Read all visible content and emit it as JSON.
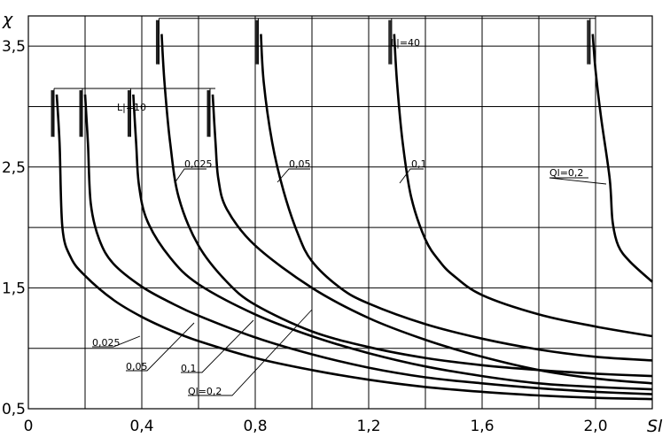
{
  "chart_data": {
    "type": "line",
    "xlabel": "Sl",
    "ylabel": "χ",
    "xlim": [
      0,
      2.2
    ],
    "ylim": [
      0.5,
      3.75
    ],
    "grid": true,
    "x_ticks": [
      0,
      0.2,
      0.4,
      0.6,
      0.8,
      1.0,
      1.2,
      1.4,
      1.6,
      1.8,
      2.0,
      2.2
    ],
    "y_ticks": [
      0.5,
      1.0,
      1.5,
      2.0,
      2.5,
      3.0,
      3.5
    ],
    "x_tick_labels": [
      {
        "x": 0,
        "label": "0"
      },
      {
        "x": 0.4,
        "label": "0,4"
      },
      {
        "x": 0.8,
        "label": "0,8"
      },
      {
        "x": 1.2,
        "label": "1,2"
      },
      {
        "x": 1.6,
        "label": "1,6"
      },
      {
        "x": 2.0,
        "label": "2,0"
      }
    ],
    "y_tick_labels": [
      {
        "y": 0.5,
        "label": "0,5"
      },
      {
        "y": 1.5,
        "label": "1,5"
      },
      {
        "y": 2.5,
        "label": "2,5"
      },
      {
        "y": 3.5,
        "label": "3,5"
      }
    ],
    "groups": [
      {
        "bracket_label": "L|=10",
        "series": [
          {
            "name": "0,025",
            "points": [
              [
                0.1,
                3.1
              ],
              [
                0.11,
                2.7
              ],
              [
                0.12,
                2.0
              ],
              [
                0.15,
                1.75
              ],
              [
                0.2,
                1.6
              ],
              [
                0.3,
                1.4
              ],
              [
                0.4,
                1.26
              ],
              [
                0.5,
                1.15
              ],
              [
                0.6,
                1.06
              ],
              [
                0.8,
                0.92
              ],
              [
                1.0,
                0.82
              ],
              [
                1.2,
                0.74
              ],
              [
                1.4,
                0.68
              ],
              [
                1.6,
                0.64
              ],
              [
                1.8,
                0.61
              ],
              [
                2.0,
                0.59
              ],
              [
                2.2,
                0.58
              ]
            ]
          },
          {
            "name": "0,05",
            "points": [
              [
                0.2,
                3.1
              ],
              [
                0.21,
                2.7
              ],
              [
                0.22,
                2.2
              ],
              [
                0.25,
                1.9
              ],
              [
                0.3,
                1.7
              ],
              [
                0.4,
                1.51
              ],
              [
                0.5,
                1.38
              ],
              [
                0.6,
                1.27
              ],
              [
                0.8,
                1.09
              ],
              [
                1.0,
                0.95
              ],
              [
                1.2,
                0.84
              ],
              [
                1.4,
                0.76
              ],
              [
                1.6,
                0.71
              ],
              [
                1.8,
                0.67
              ],
              [
                2.0,
                0.64
              ],
              [
                2.2,
                0.62
              ]
            ]
          },
          {
            "name": "0,1",
            "points": [
              [
                0.37,
                3.1
              ],
              [
                0.38,
                2.7
              ],
              [
                0.39,
                2.35
              ],
              [
                0.42,
                2.05
              ],
              [
                0.5,
                1.75
              ],
              [
                0.6,
                1.53
              ],
              [
                0.8,
                1.28
              ],
              [
                1.0,
                1.1
              ],
              [
                1.2,
                0.96
              ],
              [
                1.4,
                0.85
              ],
              [
                1.6,
                0.77
              ],
              [
                1.8,
                0.71
              ],
              [
                2.0,
                0.68
              ],
              [
                2.2,
                0.66
              ]
            ]
          },
          {
            "name": "Ql=0,2",
            "points": [
              [
                0.65,
                3.1
              ],
              [
                0.66,
                2.7
              ],
              [
                0.67,
                2.4
              ],
              [
                0.7,
                2.15
              ],
              [
                0.8,
                1.85
              ],
              [
                1.0,
                1.5
              ],
              [
                1.2,
                1.25
              ],
              [
                1.4,
                1.07
              ],
              [
                1.6,
                0.93
              ],
              [
                1.8,
                0.82
              ],
              [
                2.0,
                0.75
              ],
              [
                2.2,
                0.71
              ]
            ]
          }
        ]
      },
      {
        "bracket_label": "L|=40",
        "series": [
          {
            "name": "0,025",
            "points": [
              [
                0.47,
                3.6
              ],
              [
                0.48,
                3.2
              ],
              [
                0.5,
                2.7
              ],
              [
                0.53,
                2.25
              ],
              [
                0.6,
                1.85
              ],
              [
                0.7,
                1.55
              ],
              [
                0.8,
                1.36
              ],
              [
                1.0,
                1.14
              ],
              [
                1.2,
                1.01
              ],
              [
                1.4,
                0.92
              ],
              [
                1.6,
                0.86
              ],
              [
                1.8,
                0.82
              ],
              [
                2.0,
                0.79
              ],
              [
                2.2,
                0.77
              ]
            ]
          },
          {
            "name": "0,05",
            "points": [
              [
                0.82,
                3.6
              ],
              [
                0.83,
                3.2
              ],
              [
                0.86,
                2.7
              ],
              [
                0.9,
                2.3
              ],
              [
                0.95,
                1.95
              ],
              [
                1.0,
                1.72
              ],
              [
                1.1,
                1.5
              ],
              [
                1.2,
                1.37
              ],
              [
                1.4,
                1.2
              ],
              [
                1.6,
                1.08
              ],
              [
                1.8,
                0.99
              ],
              [
                2.0,
                0.93
              ],
              [
                2.2,
                0.9
              ]
            ]
          },
          {
            "name": "0,1",
            "points": [
              [
                1.29,
                3.6
              ],
              [
                1.3,
                3.2
              ],
              [
                1.32,
                2.7
              ],
              [
                1.35,
                2.25
              ],
              [
                1.4,
                1.9
              ],
              [
                1.45,
                1.72
              ],
              [
                1.5,
                1.6
              ],
              [
                1.6,
                1.44
              ],
              [
                1.8,
                1.28
              ],
              [
                2.0,
                1.18
              ],
              [
                2.2,
                1.1
              ]
            ]
          },
          {
            "name": "Ql=0,2",
            "points": [
              [
                1.99,
                3.6
              ],
              [
                2.0,
                3.3
              ],
              [
                2.02,
                2.9
              ],
              [
                2.05,
                2.4
              ],
              [
                2.06,
                2.05
              ],
              [
                2.08,
                1.85
              ],
              [
                2.12,
                1.72
              ],
              [
                2.2,
                1.55
              ]
            ]
          }
        ]
      }
    ]
  },
  "labels": {
    "bracket_10": "L|=10",
    "bracket_40": "L|=40",
    "upper": {
      "s025": "0,025",
      "s05": "0,05",
      "s1": "0,1",
      "s2": "Ql=0,2"
    },
    "lower": {
      "s025": "0,025",
      "s05": "0,05",
      "s1": "0,1",
      "s2": "Ql=0,2"
    }
  }
}
